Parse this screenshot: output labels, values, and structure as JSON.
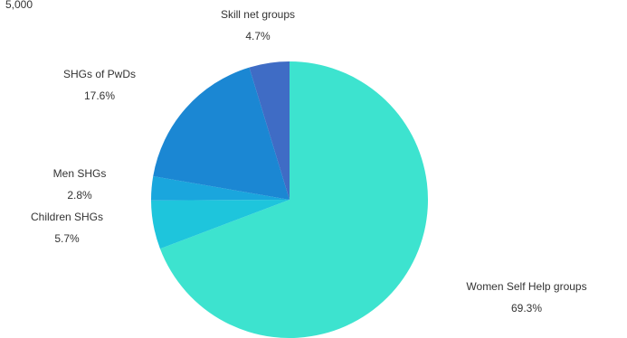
{
  "top_left_text": "5,000",
  "chart_data": {
    "type": "pie",
    "title": "",
    "slices": [
      {
        "label": "Women Self Help groups",
        "percent_label": "69.3%",
        "value": 69.3,
        "color": "#3de3cf"
      },
      {
        "label": "Children SHGs",
        "percent_label": "5.7%",
        "value": 5.7,
        "color": "#1ec5dc"
      },
      {
        "label": "Men SHGs",
        "percent_label": "2.8%",
        "value": 2.8,
        "color": "#1aa6dd"
      },
      {
        "label": "SHGs of PwDs",
        "percent_label": "17.6%",
        "value": 17.6,
        "color": "#1b87d3"
      },
      {
        "label": "Skill net groups",
        "percent_label": "4.7%",
        "value": 4.7,
        "color": "#3f6cc5"
      }
    ],
    "legend": "none",
    "start_angle": "12 o'clock",
    "direction": "clockwise"
  }
}
